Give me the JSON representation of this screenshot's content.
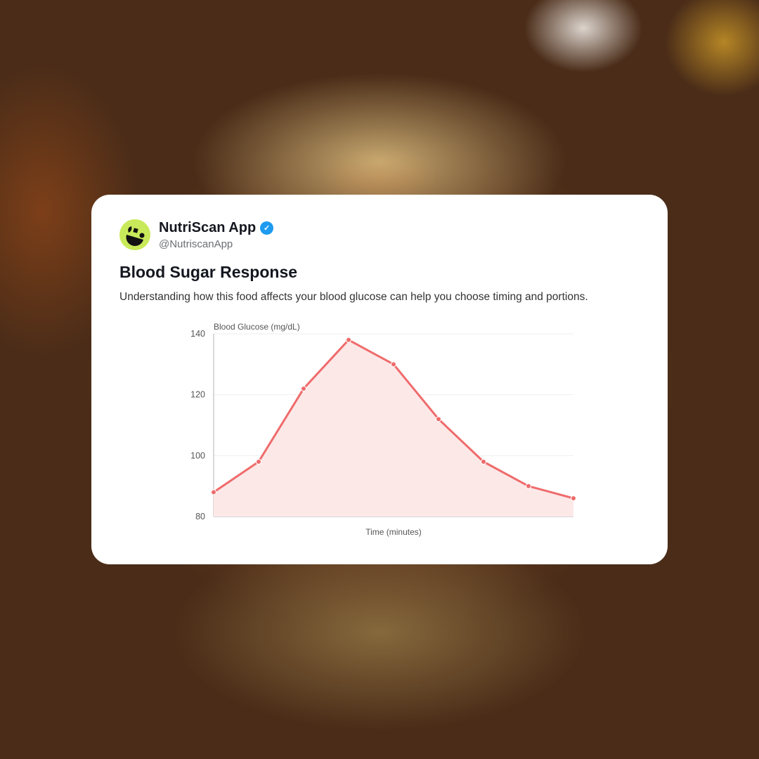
{
  "profile": {
    "name": "NutriScan App",
    "handle": "@NutriscanApp",
    "verified": true,
    "avatar_color": "#c8ea5a"
  },
  "post": {
    "title": "Blood Sugar Response",
    "description": "Understanding how this food affects your blood glucose can help you choose timing and portions."
  },
  "chart_data": {
    "type": "area",
    "xlabel": "Time (minutes)",
    "ylabel": "Blood Glucose (mg/dL)",
    "ylim": [
      80,
      140
    ],
    "yticks": [
      "80",
      "100",
      "120",
      "140"
    ],
    "grid": true,
    "series": [
      {
        "values": [
          88,
          98,
          122,
          138,
          130,
          112,
          98,
          90,
          86
        ]
      }
    ],
    "colors": {
      "line": "#ef6b6b",
      "fill": "#fde8e8"
    }
  }
}
